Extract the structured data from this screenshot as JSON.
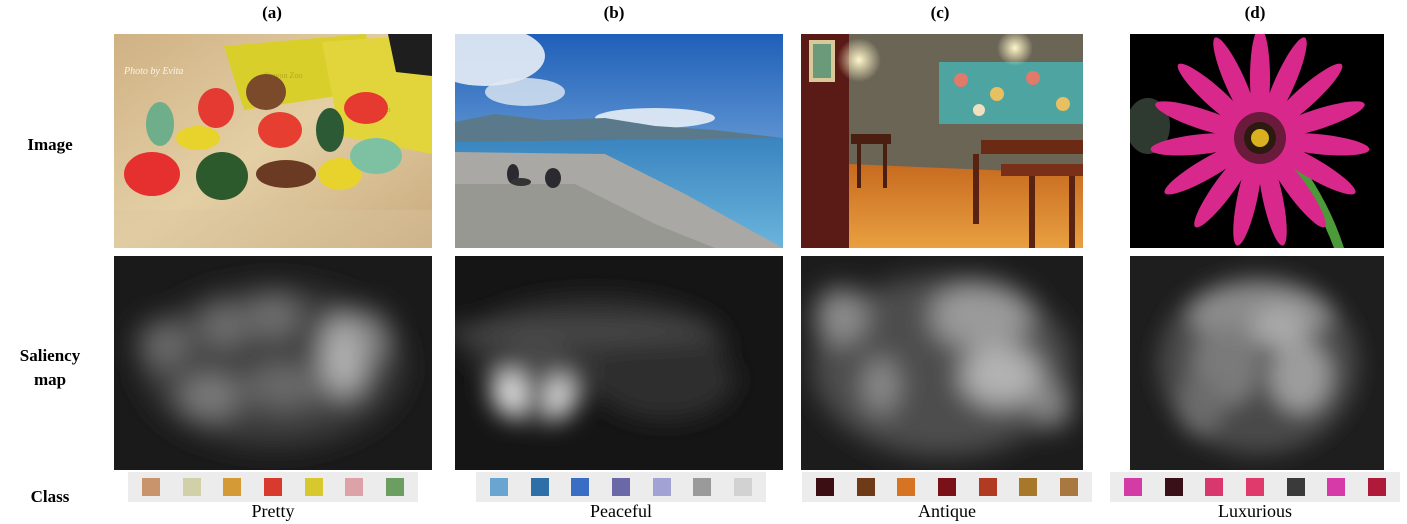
{
  "columns": [
    {
      "label": "(a)",
      "class_name": "Pretty",
      "palette": [
        "#c9946b",
        "#d2d0a8",
        "#d49a35",
        "#d83a2e",
        "#d7c82e",
        "#dca2a8",
        "#6c9e62"
      ]
    },
    {
      "label": "(b)",
      "class_name": "Peaceful",
      "palette": [
        "#6aa5d2",
        "#2f6fa8",
        "#3a6ec4",
        "#6a68a6",
        "#a3a2d4",
        "#9a9a9a",
        "#d2d2d2"
      ]
    },
    {
      "label": "(c)",
      "class_name": "Antique",
      "palette": [
        "#3a0e12",
        "#6e3a18",
        "#d77424",
        "#7a1018",
        "#b03a22",
        "#a8782a",
        "#a87840"
      ]
    },
    {
      "label": "(d)",
      "class_name": "Luxurious",
      "palette": [
        "#d23ca4",
        "#3a1018",
        "#d8386e",
        "#e03a6c",
        "#3a3a3a",
        "#d63aa8",
        "#b01a3a"
      ]
    }
  ],
  "rows": {
    "image": "Image",
    "saliency_line1": "Saliency",
    "saliency_line2": "map",
    "class": "Class"
  },
  "watermark": "Photo by Evita",
  "crayon_text": "Crayon Zoo"
}
